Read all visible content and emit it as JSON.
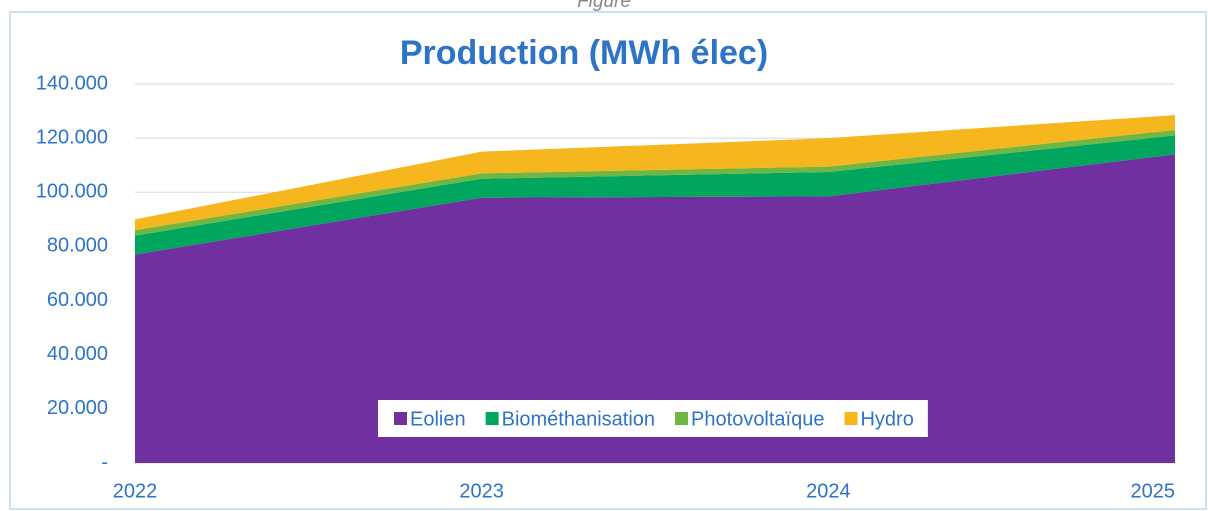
{
  "header": {
    "caption": "Figure"
  },
  "chart_data": {
    "type": "stacked-area",
    "title": "Production (MWh élec)",
    "categories": [
      "2022",
      "2023",
      "2024",
      "2025"
    ],
    "series": [
      {
        "name": "Eolien",
        "color": "#7030a0",
        "values": [
          77000,
          98000,
          98500,
          114000
        ]
      },
      {
        "name": "Biométhanisation",
        "color": "#00a65d",
        "values": [
          7000,
          7000,
          9000,
          7000
        ]
      },
      {
        "name": "Photovoltaïque",
        "color": "#70b642",
        "values": [
          2000,
          2000,
          2000,
          2000
        ]
      },
      {
        "name": "Hydro",
        "color": "#f6b61e",
        "values": [
          4000,
          8000,
          10500,
          5500
        ]
      }
    ],
    "ylim": [
      0,
      140000
    ],
    "yticks": [
      {
        "value": 0,
        "label": "-"
      },
      {
        "value": 20000,
        "label": "20.000"
      },
      {
        "value": 40000,
        "label": "40.000"
      },
      {
        "value": 60000,
        "label": "60.000"
      },
      {
        "value": 80000,
        "label": "80.000"
      },
      {
        "value": 100000,
        "label": "100.000"
      },
      {
        "value": 120000,
        "label": "120.000"
      },
      {
        "value": 140000,
        "label": "140.000"
      }
    ],
    "grid": true,
    "legend": "bottom"
  }
}
